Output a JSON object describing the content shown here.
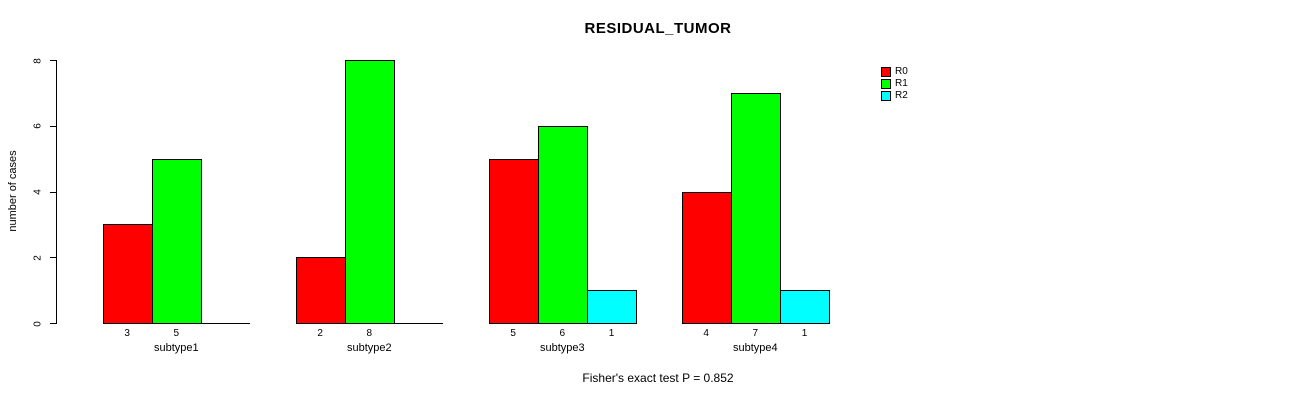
{
  "chart_data": {
    "type": "bar",
    "title": "RESIDUAL_TUMOR",
    "ylabel": "number of cases",
    "xlabel": "",
    "annotation": "Fisher's exact test P = 0.852",
    "ylim": [
      0,
      8
    ],
    "yticks": [
      "0",
      "2",
      "4",
      "6",
      "8"
    ],
    "categories": [
      "subtype1",
      "subtype2",
      "subtype3",
      "subtype4"
    ],
    "series": [
      {
        "name": "R0",
        "color": "#ff0000",
        "values": [
          3,
          2,
          5,
          4
        ]
      },
      {
        "name": "R1",
        "color": "#00ff00",
        "values": [
          5,
          8,
          6,
          7
        ]
      },
      {
        "name": "R2",
        "color": "#00ffff",
        "values": [
          0,
          0,
          1,
          1
        ]
      }
    ],
    "value_labels_shown": true,
    "zero_values_unlabeled": true,
    "legend_position": "top-right",
    "grid": false,
    "bar_border_color": "#000000",
    "axis_color": "#000000",
    "text_color": "#000000",
    "background": "#ffffff"
  }
}
